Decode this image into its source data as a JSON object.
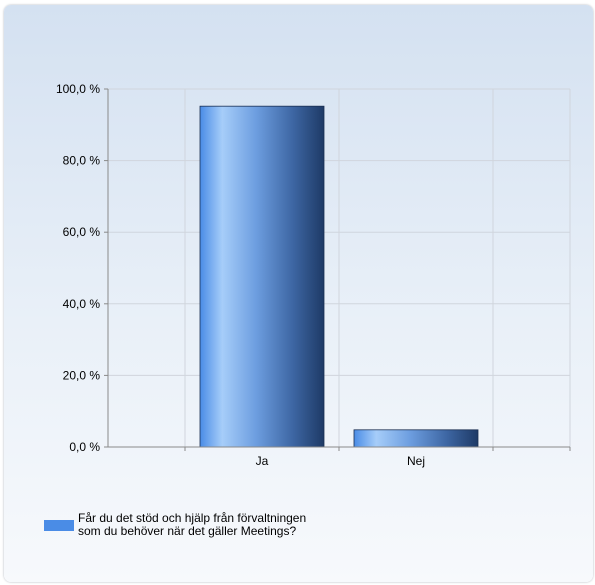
{
  "chart_data": {
    "type": "bar",
    "categories": [
      "Ja",
      "Nej"
    ],
    "series": [
      {
        "name": "Får du det stöd och hjälp från förvaltningen som du behöver när det gäller Meetings?",
        "values": [
          95.2,
          4.8
        ]
      }
    ],
    "ylim": [
      0,
      100
    ],
    "yticks": [
      "0,0 %",
      "20,0 %",
      "40,0 %",
      "60,0 %",
      "80,0 %",
      "100,0 %"
    ],
    "ytick_values": [
      0,
      20,
      40,
      60,
      80,
      100
    ],
    "grid": true,
    "legend_position": "bottom-left",
    "colors": {
      "bar_light": "#a6cdf9",
      "bar_mid": "#4a8ce6",
      "bar_dark": "#1e3a66",
      "legend": "#4a8ce6",
      "grid": "#d0d5dd",
      "axis": "#8a8a8a"
    }
  },
  "legend": {
    "label": "Får du det stöd och hjälp från förvaltningen som du behöver när det gäller Meetings?"
  }
}
